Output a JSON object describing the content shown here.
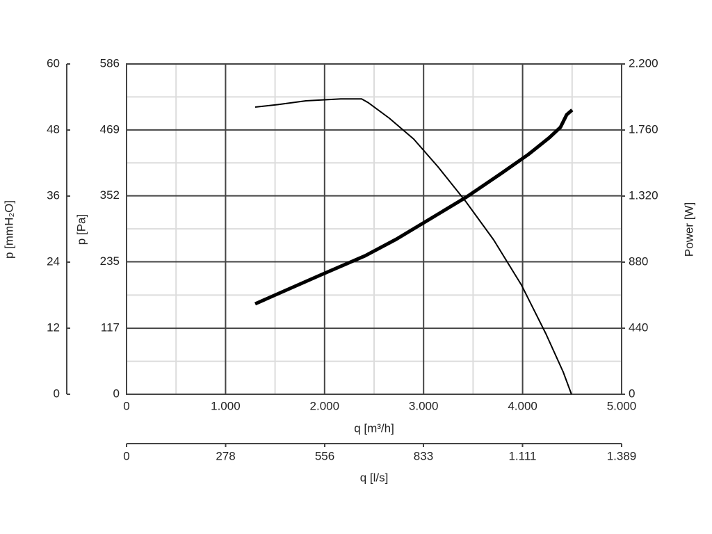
{
  "chart_data": {
    "type": "line",
    "xlabel": "q [m³/h]",
    "ylabel": "p [Pa]",
    "y2label": "Power [W]",
    "y3label": "p [mmH₂O]",
    "x2label": "q [l/s]",
    "xlim": [
      0,
      5000
    ],
    "xticks": [
      0,
      {
        "value": 1000,
        "label": "1.000"
      },
      {
        "value": 2000,
        "label": "2.000"
      },
      {
        "value": 3000,
        "label": "3.000"
      },
      {
        "value": 4000,
        "label": "4.000"
      },
      {
        "value": 5000,
        "label": "5.000"
      }
    ],
    "ylim": [
      0,
      586
    ],
    "yticks": [
      0,
      117,
      235,
      352,
      469,
      586
    ],
    "y2lim": [
      0,
      2200
    ],
    "y2ticks": [
      0,
      440,
      880,
      {
        "value": 1320,
        "label": "1.320"
      },
      {
        "value": 1760,
        "label": "1.760"
      },
      {
        "value": 2200,
        "label": "2.200"
      }
    ],
    "y3lim": [
      0,
      60
    ],
    "y3ticks": [
      0,
      12,
      24,
      36,
      48,
      60
    ],
    "x2lim": [
      0,
      1389
    ],
    "x2ticks": [
      0,
      278,
      556,
      833,
      {
        "value": 1111,
        "label": "1.111"
      },
      {
        "value": 1389,
        "label": "1.389"
      }
    ],
    "grid": true,
    "minor_grid": true,
    "series": [
      {
        "color": "#000000",
        "line_width": 2,
        "x": [
          1299,
          1531,
          1812,
          2163,
          2374,
          2444,
          2654,
          2900,
          3146,
          3427,
          3708,
          3989,
          4235,
          4410,
          4494
        ],
        "values": [
          509.5,
          514,
          520.6,
          524,
          524,
          517,
          489.8,
          452.8,
          403.4,
          341.7,
          273.9,
          193.7,
          107.3,
          39.5,
          0
        ]
      },
      {
        "color": "#000000",
        "line_width": 5,
        "axis": "y2",
        "x": [
          1299,
          1601,
          1952,
          2409,
          2725,
          3076,
          3427,
          3778,
          4059,
          4270,
          4382,
          4445,
          4501
        ],
        "values": [
          602,
          690,
          792,
          922,
          1033,
          1172,
          1311,
          1468,
          1598,
          1709,
          1778,
          1862,
          1894
        ]
      }
    ]
  }
}
